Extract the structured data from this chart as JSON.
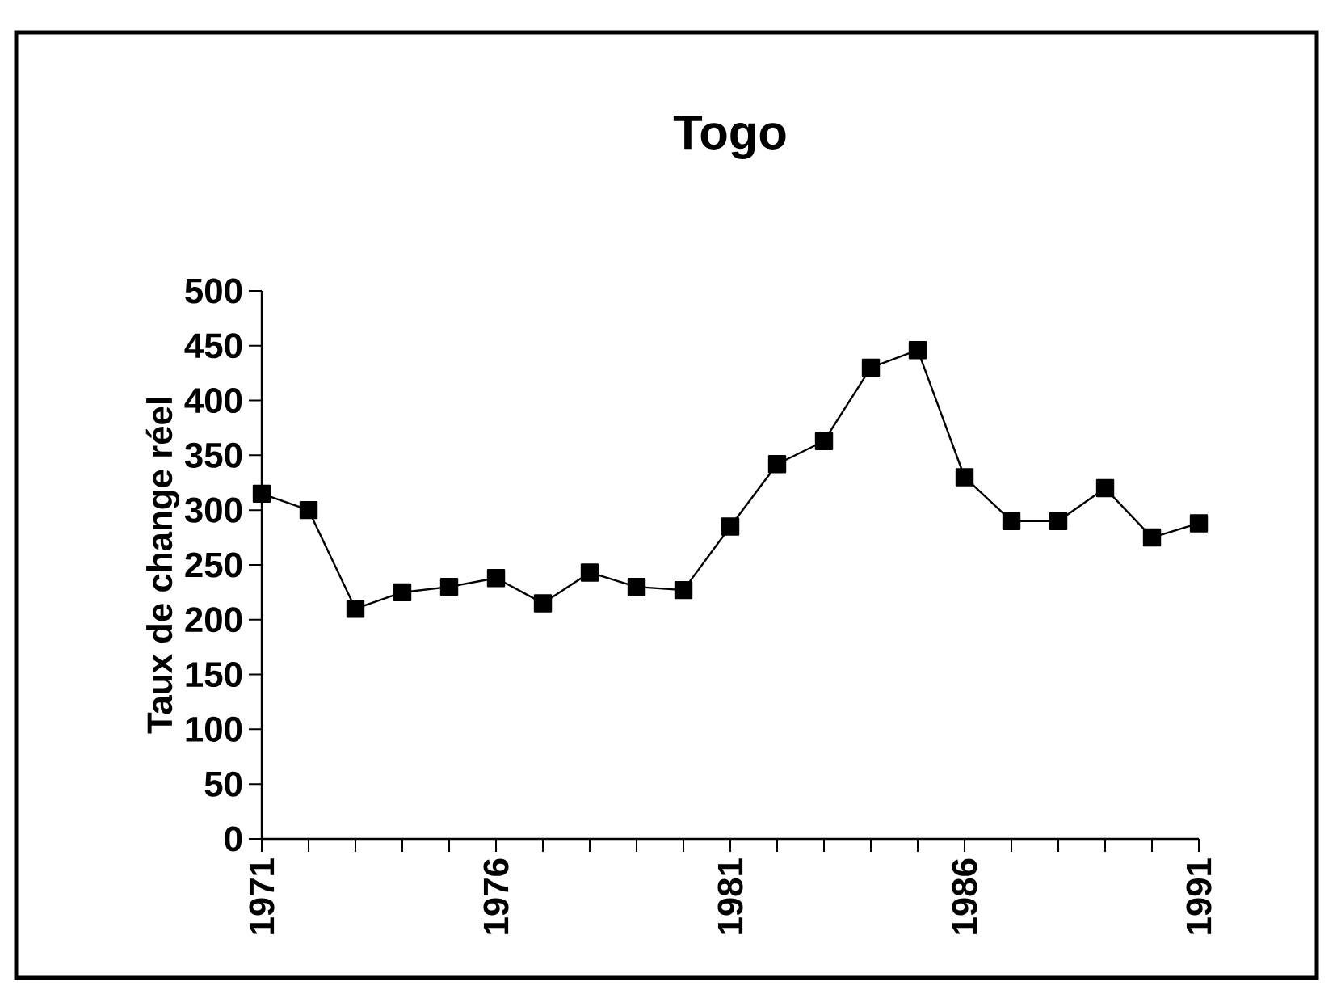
{
  "chart_data": {
    "type": "line",
    "title": "Togo",
    "ylabel": "Taux de change réel",
    "x": [
      1971,
      1972,
      1973,
      1974,
      1975,
      1976,
      1977,
      1978,
      1979,
      1980,
      1981,
      1982,
      1983,
      1984,
      1985,
      1986,
      1987,
      1988,
      1989,
      1990,
      1991
    ],
    "series": [
      {
        "color": "#000000",
        "values": [
          315,
          300,
          210,
          225,
          230,
          238,
          215,
          243,
          230,
          227,
          285,
          342,
          363,
          430,
          446,
          330,
          290,
          290,
          320,
          275,
          288
        ]
      }
    ],
    "xlim": [
      1971,
      1991
    ],
    "ylim": [
      0,
      500
    ],
    "xticks": [
      1971,
      {
        "value": 1972,
        "label": null
      },
      {
        "value": 1973,
        "label": null
      },
      {
        "value": 1974,
        "label": null
      },
      {
        "value": 1975,
        "label": null
      },
      1976,
      {
        "value": 1977,
        "label": null
      },
      {
        "value": 1978,
        "label": null
      },
      {
        "value": 1979,
        "label": null
      },
      {
        "value": 1980,
        "label": null
      },
      1981,
      {
        "value": 1982,
        "label": null
      },
      {
        "value": 1983,
        "label": null
      },
      {
        "value": 1984,
        "label": null
      },
      {
        "value": 1985,
        "label": null
      },
      1986,
      {
        "value": 1987,
        "label": null
      },
      {
        "value": 1988,
        "label": null
      },
      {
        "value": 1989,
        "label": null
      },
      {
        "value": 1990,
        "label": null
      },
      1991
    ],
    "yticks": [
      0,
      50,
      100,
      150,
      200,
      250,
      300,
      350,
      400,
      450,
      500
    ],
    "marker": "square",
    "line_style": "solid",
    "grid": false
  }
}
